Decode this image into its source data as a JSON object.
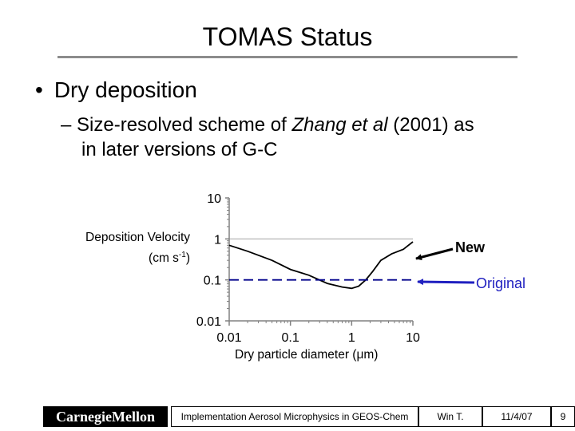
{
  "slide": {
    "title": "TOMAS Status",
    "bullet_symbol": "•",
    "bullet1": "Dry deposition",
    "sub_dash": "–",
    "sub_part1": "Size-resolved scheme of ",
    "sub_italic": "Zhang et al",
    "sub_part2": " (2001) as",
    "sub_line2": "in later versions of G-C"
  },
  "chart_data": {
    "type": "line",
    "ylabel_line1": "Deposition Velocity",
    "ylabel_line2_prefix": "(cm s",
    "ylabel_exponent": "-1",
    "ylabel_line2_suffix": ")",
    "xlabel": "Dry particle diameter (μm)",
    "xscale": "log",
    "yscale": "log",
    "xlim": [
      0.01,
      10
    ],
    "ylim": [
      0.01,
      10
    ],
    "x_tick_labels": [
      "0.01",
      "0.1",
      "1",
      "10"
    ],
    "y_tick_labels": [
      "10",
      "1",
      "0.1",
      "0.01"
    ],
    "gridlines_y": [
      1
    ],
    "series": [
      {
        "name": "New",
        "color": "#000000",
        "style": "solid",
        "x": [
          0.01,
          0.02,
          0.05,
          0.1,
          0.2,
          0.4,
          0.7,
          1.0,
          1.3,
          1.7,
          2.2,
          3.0,
          4.5,
          7.0,
          10.0
        ],
        "y": [
          0.7,
          0.5,
          0.3,
          0.18,
          0.13,
          0.082,
          0.067,
          0.062,
          0.07,
          0.1,
          0.16,
          0.3,
          0.43,
          0.56,
          0.85
        ]
      },
      {
        "name": "Original",
        "color": "#00008b",
        "style": "dashed",
        "x": [
          0.01,
          10
        ],
        "y": [
          0.1,
          0.1
        ]
      }
    ],
    "annotations": [
      {
        "text": "New",
        "color": "#000000"
      },
      {
        "text": "Original",
        "color": "#2020c0"
      }
    ]
  },
  "footer": {
    "logo": "CarnegieMellon",
    "talk_title": "Implementation Aerosol Microphysics in GEOS-Chem",
    "author": "Win T.",
    "date": "11/4/07",
    "page": "9"
  }
}
